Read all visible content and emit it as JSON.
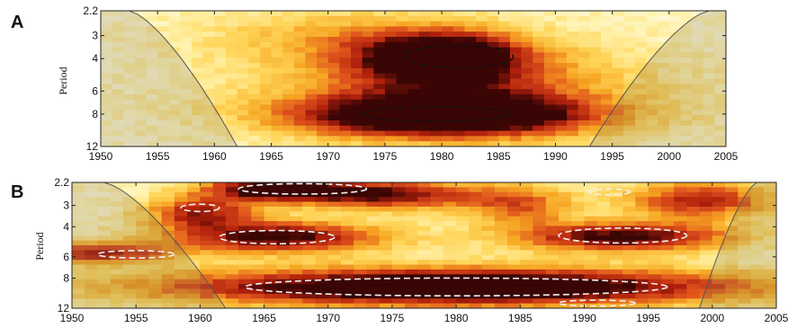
{
  "chart_data": [
    {
      "type": "heatmap",
      "panel_label": "A",
      "ylabel": "Period",
      "xlabel": "",
      "xlim": [
        1950,
        2005
      ],
      "ylim": [
        2.2,
        12
      ],
      "y_scale": "log",
      "x_ticks": [
        "1950",
        "1955",
        "1960",
        "1965",
        "1970",
        "1975",
        "1980",
        "1985",
        "1990",
        "1995",
        "2000",
        "2005"
      ],
      "y_ticks": [
        "2.2",
        "3",
        "4",
        "6",
        "8",
        "12"
      ],
      "colormap": [
        "#ffffff",
        "#fff3b0",
        "#ffd65a",
        "#f6a623",
        "#e0541c",
        "#b0200c",
        "#3a0505"
      ],
      "cone_of_influence_color": "#555555",
      "cone_of_influence": {
        "left_end_year": 1962,
        "right_end_year": 1993
      },
      "power_peaks": [
        {
          "x": 1980,
          "y": 3.9,
          "sx": 5.0,
          "sy": 0.22,
          "amp": 1.0
        },
        {
          "x": 1980,
          "y": 8.2,
          "sx": 9.0,
          "sy": 0.18,
          "amp": 1.1
        },
        {
          "x": 1981,
          "y": 5.8,
          "sx": 11.0,
          "sy": 0.4,
          "amp": 0.55
        },
        {
          "x": 1970,
          "y": 3.0,
          "sx": 8.0,
          "sy": 0.25,
          "amp": 0.25
        }
      ],
      "significance_contours": [
        {
          "x": 1981.5,
          "y": 3.9,
          "rx": 4.8,
          "ry": 0.14
        },
        {
          "x": 1979.5,
          "y": 8.0,
          "rx": 6.5,
          "ry": 0.09
        }
      ]
    },
    {
      "type": "heatmap",
      "panel_label": "B",
      "ylabel": "Period",
      "xlabel": "",
      "xlim": [
        1950,
        2005
      ],
      "ylim": [
        2.2,
        12
      ],
      "y_scale": "log",
      "x_ticks": [
        "1950",
        "1955",
        "1960",
        "1965",
        "1970",
        "1975",
        "1980",
        "1985",
        "1990",
        "1995",
        "2000",
        "2005"
      ],
      "y_ticks": [
        "2.2",
        "3",
        "4",
        "6",
        "8",
        "12"
      ],
      "colormap": [
        "#ffffff",
        "#fff3b0",
        "#ffd65a",
        "#f6a623",
        "#e0541c",
        "#b0200c",
        "#3a0505"
      ],
      "cone_of_influence_color": "#555555",
      "cone_of_influence": {
        "left_end_year": 1962,
        "right_end_year": 1999
      },
      "power_peaks": [
        {
          "x": 1980,
          "y": 9.0,
          "sx": 16.0,
          "sy": 0.18,
          "amp": 1.2
        },
        {
          "x": 1966,
          "y": 4.6,
          "sx": 6.0,
          "sy": 0.15,
          "amp": 0.9
        },
        {
          "x": 1993,
          "y": 4.6,
          "sx": 6.0,
          "sy": 0.14,
          "amp": 0.9
        },
        {
          "x": 1966,
          "y": 2.4,
          "sx": 4.0,
          "sy": 0.12,
          "amp": 1.0
        },
        {
          "x": 1975,
          "y": 2.6,
          "sx": 5.0,
          "sy": 0.14,
          "amp": 0.8
        },
        {
          "x": 1952,
          "y": 5.7,
          "sx": 4.0,
          "sy": 0.1,
          "amp": 0.7
        },
        {
          "x": 1960,
          "y": 3.3,
          "sx": 3.0,
          "sy": 0.15,
          "amp": 0.7
        },
        {
          "x": 1999,
          "y": 2.8,
          "sx": 4.0,
          "sy": 0.18,
          "amp": 0.7
        },
        {
          "x": 1985,
          "y": 3.0,
          "sx": 3.0,
          "sy": 0.2,
          "amp": 0.5
        }
      ],
      "significance_contours": [
        {
          "x": 1980,
          "y": 9.0,
          "rx": 16.5,
          "ry": 0.12
        },
        {
          "x": 1966,
          "y": 4.6,
          "rx": 4.5,
          "ry": 0.09
        },
        {
          "x": 1993,
          "y": 4.5,
          "rx": 5.0,
          "ry": 0.1
        },
        {
          "x": 1968,
          "y": 2.4,
          "rx": 5.0,
          "ry": 0.07
        },
        {
          "x": 1955,
          "y": 5.8,
          "rx": 3.0,
          "ry": 0.05
        },
        {
          "x": 1991,
          "y": 11.2,
          "rx": 3.0,
          "ry": 0.04
        },
        {
          "x": 1992,
          "y": 2.5,
          "rx": 1.6,
          "ry": 0.04
        },
        {
          "x": 1960,
          "y": 3.1,
          "rx": 1.5,
          "ry": 0.05
        }
      ]
    }
  ]
}
